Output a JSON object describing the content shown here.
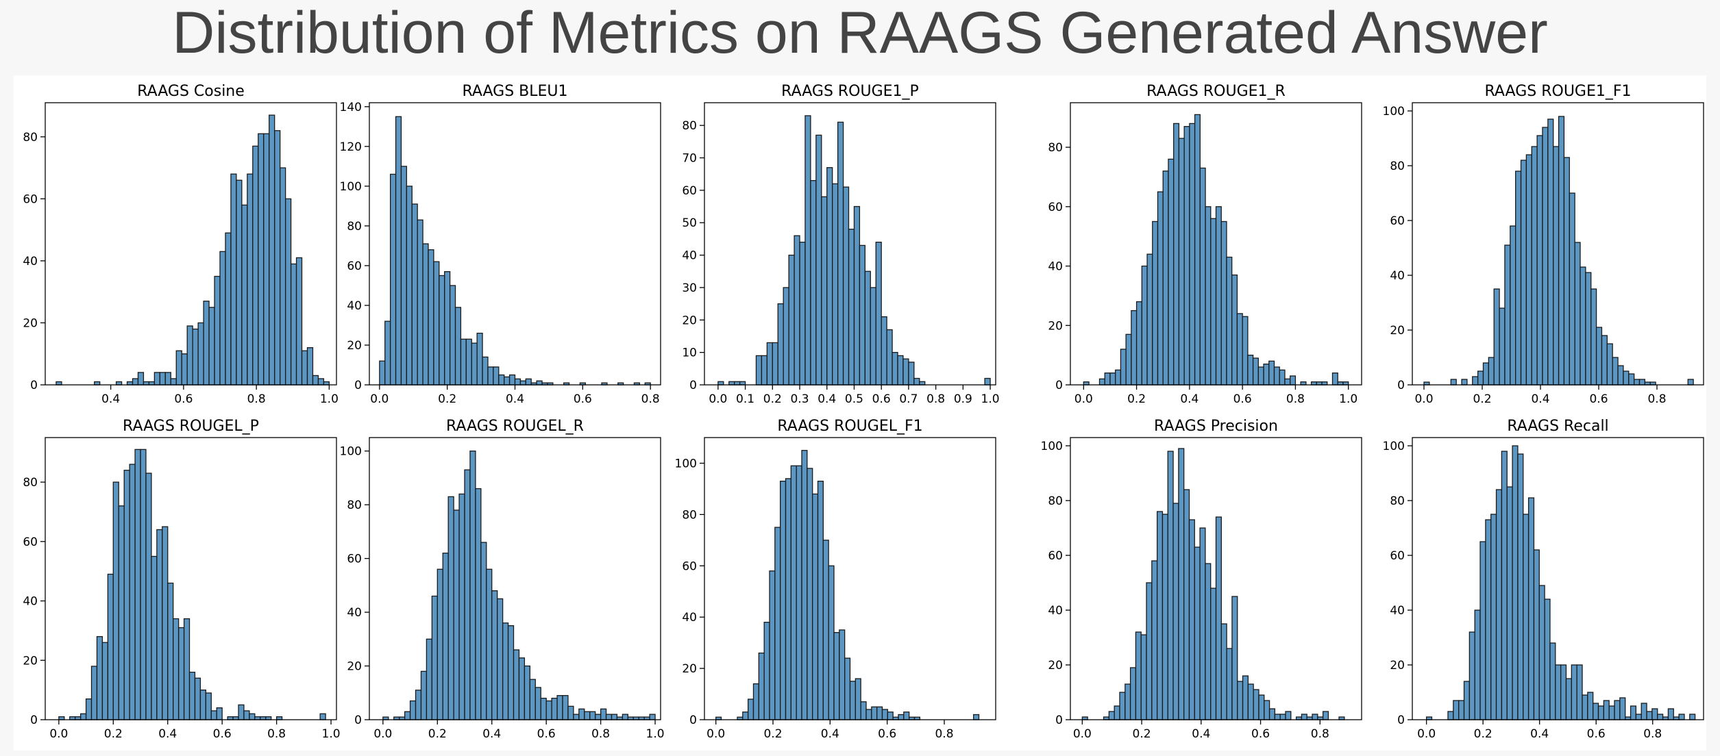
{
  "figure": {
    "title": "Distribution of Metrics on RAAGS Generated Answer",
    "bar_color": "#4a8bbd",
    "edge_color": "#1a1a1a"
  },
  "chart_data": [
    {
      "type": "bar",
      "title": "RAAGS Cosine",
      "xlim": [
        0.22,
        1.02
      ],
      "ylim": [
        0,
        91
      ],
      "x_ticks": [
        0.4,
        0.6,
        0.8,
        1.0
      ],
      "x_tick_labels": [
        "0.4",
        "0.6",
        "0.8",
        "1.0"
      ],
      "y_ticks": [
        0,
        20,
        40,
        60,
        80
      ],
      "bin_start": 0.25,
      "bin_width": 0.015,
      "values": [
        1,
        0,
        0,
        0,
        0,
        0,
        0,
        1,
        0,
        0,
        0,
        1,
        0,
        1,
        2,
        4,
        1,
        1,
        4,
        4,
        4,
        2,
        11,
        10,
        19,
        18,
        20,
        27,
        25,
        35,
        43,
        49,
        68,
        66,
        58,
        68,
        77,
        81,
        81,
        87,
        82,
        70,
        60,
        39,
        41,
        11,
        12,
        3,
        2,
        1
      ]
    },
    {
      "type": "bar",
      "title": "RAAGS BLEU1",
      "xlim": [
        -0.03,
        0.83
      ],
      "ylim": [
        0,
        142
      ],
      "x_ticks": [
        0.0,
        0.2,
        0.4,
        0.6,
        0.8
      ],
      "x_tick_labels": [
        "0.0",
        "0.2",
        "0.4",
        "0.6",
        "0.8"
      ],
      "y_ticks": [
        0,
        20,
        40,
        60,
        80,
        100,
        120,
        140
      ],
      "bin_start": 0.0,
      "bin_width": 0.016,
      "values": [
        12,
        32,
        106,
        135,
        110,
        100,
        91,
        83,
        71,
        68,
        62,
        55,
        57,
        50,
        39,
        23,
        23,
        21,
        26,
        14,
        9,
        9,
        5,
        4,
        5,
        3,
        2,
        3,
        1,
        2,
        1,
        1,
        0,
        0,
        1,
        0,
        0,
        1,
        0,
        0,
        0,
        1,
        0,
        0,
        1,
        0,
        0,
        1,
        0,
        1
      ]
    },
    {
      "type": "bar",
      "title": "RAAGS ROUGE1_P",
      "xlim": [
        -0.05,
        1.02
      ],
      "ylim": [
        0,
        87
      ],
      "x_ticks": [
        0.0,
        0.1,
        0.2,
        0.3,
        0.4,
        0.5,
        0.6,
        0.7,
        0.8,
        0.9,
        1.0
      ],
      "x_tick_labels": [
        "0.0",
        "0.1",
        "0.2",
        "0.3",
        "0.4",
        "0.5",
        "0.6",
        "0.7",
        "0.8",
        "0.9",
        "1.0"
      ],
      "y_ticks": [
        0,
        10,
        20,
        30,
        40,
        50,
        60,
        70,
        80
      ],
      "bin_start": 0.0,
      "bin_width": 0.02,
      "values": [
        1,
        0,
        1,
        1,
        1,
        0,
        0,
        9,
        9,
        13,
        13,
        25,
        30,
        40,
        46,
        44,
        83,
        63,
        77,
        58,
        67,
        62,
        81,
        61,
        48,
        55,
        43,
        35,
        30,
        44,
        21,
        17,
        10,
        9,
        8,
        7,
        2,
        1,
        0,
        0,
        0,
        0,
        0,
        0,
        0,
        0,
        0,
        0,
        0,
        2
      ]
    },
    {
      "type": "bar",
      "title": "RAAGS ROUGE1_R",
      "xlim": [
        -0.05,
        1.05
      ],
      "ylim": [
        0,
        95
      ],
      "x_ticks": [
        0.0,
        0.2,
        0.4,
        0.6,
        0.8,
        1.0
      ],
      "x_tick_labels": [
        "0.0",
        "0.2",
        "0.4",
        "0.6",
        "0.8",
        "1.0"
      ],
      "y_ticks": [
        0,
        20,
        40,
        60,
        80
      ],
      "bin_start": 0.0,
      "bin_width": 0.02,
      "values": [
        1,
        0,
        0,
        2,
        4,
        4,
        5,
        12,
        17,
        25,
        28,
        40,
        44,
        55,
        65,
        72,
        76,
        88,
        83,
        87,
        88,
        91,
        73,
        60,
        56,
        60,
        55,
        43,
        37,
        24,
        23,
        10,
        9,
        6,
        7,
        8,
        6,
        5,
        2,
        3,
        0,
        1,
        0,
        1,
        1,
        1,
        0,
        4,
        1,
        1
      ]
    },
    {
      "type": "bar",
      "title": "RAAGS ROUGE1_F1",
      "xlim": [
        -0.04,
        0.96
      ],
      "ylim": [
        0,
        103
      ],
      "x_ticks": [
        0.0,
        0.2,
        0.4,
        0.6,
        0.8
      ],
      "x_tick_labels": [
        "0.0",
        "0.2",
        "0.4",
        "0.6",
        "0.8"
      ],
      "y_ticks": [
        0,
        20,
        40,
        60,
        80,
        100
      ],
      "bin_start": 0.0,
      "bin_width": 0.0185,
      "values": [
        1,
        0,
        0,
        0,
        0,
        2,
        0,
        2,
        0,
        3,
        5,
        8,
        10,
        35,
        28,
        51,
        58,
        78,
        82,
        84,
        87,
        91,
        94,
        97,
        87,
        98,
        83,
        70,
        52,
        43,
        41,
        35,
        21,
        18,
        15,
        10,
        7,
        5,
        4,
        2,
        2,
        1,
        1,
        0,
        0,
        0,
        0,
        0,
        0,
        2
      ]
    },
    {
      "type": "bar",
      "title": "RAAGS ROUGEL_P",
      "xlim": [
        -0.05,
        1.02
      ],
      "ylim": [
        0,
        95
      ],
      "x_ticks": [
        0.0,
        0.2,
        0.4,
        0.6,
        0.8,
        1.0
      ],
      "x_tick_labels": [
        "0.0",
        "0.2",
        "0.4",
        "0.6",
        "0.8",
        "1.0"
      ],
      "y_ticks": [
        0,
        20,
        40,
        60,
        80
      ],
      "bin_start": 0.0,
      "bin_width": 0.02,
      "values": [
        1,
        0,
        1,
        1,
        2,
        7,
        18,
        28,
        26,
        49,
        80,
        72,
        84,
        86,
        91,
        91,
        83,
        55,
        64,
        65,
        46,
        34,
        31,
        34,
        16,
        14,
        10,
        9,
        3,
        4,
        0,
        1,
        1,
        5,
        3,
        2,
        1,
        1,
        1,
        0,
        1,
        0,
        0,
        0,
        0,
        0,
        0,
        0,
        2,
        0
      ]
    },
    {
      "type": "bar",
      "title": "RAAGS ROUGEL_R",
      "xlim": [
        -0.05,
        1.02
      ],
      "ylim": [
        0,
        105
      ],
      "x_ticks": [
        0.0,
        0.2,
        0.4,
        0.6,
        0.8,
        1.0
      ],
      "x_tick_labels": [
        "0.0",
        "0.2",
        "0.4",
        "0.6",
        "0.8",
        "1.0"
      ],
      "y_ticks": [
        0,
        20,
        40,
        60,
        80,
        100
      ],
      "bin_start": 0.0,
      "bin_width": 0.02,
      "values": [
        1,
        0,
        1,
        1,
        3,
        7,
        11,
        18,
        30,
        46,
        56,
        62,
        83,
        78,
        84,
        93,
        100,
        86,
        66,
        56,
        48,
        45,
        36,
        35,
        26,
        23,
        20,
        15,
        12,
        8,
        7,
        8,
        9,
        9,
        5,
        2,
        4,
        3,
        3,
        2,
        4,
        2,
        2,
        1,
        2,
        1,
        1,
        1,
        1,
        2
      ]
    },
    {
      "type": "bar",
      "title": "RAAGS ROUGEL_F1",
      "xlim": [
        -0.04,
        0.98
      ],
      "ylim": [
        0,
        110
      ],
      "x_ticks": [
        0.0,
        0.2,
        0.4,
        0.6,
        0.8
      ],
      "x_tick_labels": [
        "0.0",
        "0.2",
        "0.4",
        "0.6",
        "0.8"
      ],
      "y_ticks": [
        0,
        20,
        40,
        60,
        80,
        100
      ],
      "bin_start": 0.0,
      "bin_width": 0.0188,
      "values": [
        1,
        0,
        0,
        0,
        1,
        3,
        8,
        14,
        26,
        38,
        58,
        75,
        93,
        94,
        99,
        99,
        105,
        98,
        88,
        93,
        70,
        60,
        34,
        35,
        24,
        15,
        16,
        7,
        4,
        5,
        5,
        4,
        3,
        1,
        2,
        3,
        1,
        1,
        0,
        0,
        0,
        0,
        0,
        0,
        0,
        0,
        0,
        0,
        2,
        0
      ]
    },
    {
      "type": "bar",
      "title": "RAAGS Precision",
      "xlim": [
        -0.04,
        0.94
      ],
      "ylim": [
        0,
        103
      ],
      "x_ticks": [
        0.0,
        0.2,
        0.4,
        0.6,
        0.8
      ],
      "x_tick_labels": [
        "0.0",
        "0.2",
        "0.4",
        "0.6",
        "0.8"
      ],
      "y_ticks": [
        0,
        20,
        40,
        60,
        80,
        100
      ],
      "bin_start": 0.0,
      "bin_width": 0.018,
      "values": [
        1,
        0,
        0,
        0,
        1,
        3,
        5,
        10,
        13,
        19,
        32,
        31,
        50,
        58,
        76,
        75,
        98,
        79,
        99,
        84,
        73,
        63,
        70,
        57,
        48,
        74,
        35,
        26,
        45,
        14,
        16,
        13,
        11,
        9,
        7,
        4,
        2,
        2,
        3,
        0,
        1,
        2,
        1,
        2,
        1,
        3,
        0,
        0,
        1,
        0
      ]
    },
    {
      "type": "bar",
      "title": "RAAGS Recall",
      "xlim": [
        -0.05,
        0.98
      ],
      "ylim": [
        0,
        103
      ],
      "x_ticks": [
        0.0,
        0.2,
        0.4,
        0.6,
        0.8
      ],
      "x_tick_labels": [
        "0.0",
        "0.2",
        "0.4",
        "0.6",
        "0.8"
      ],
      "y_ticks": [
        0,
        20,
        40,
        60,
        80,
        100
      ],
      "bin_start": 0.0,
      "bin_width": 0.019,
      "values": [
        1,
        0,
        0,
        0,
        3,
        7,
        7,
        14,
        32,
        40,
        65,
        73,
        75,
        84,
        98,
        85,
        100,
        97,
        75,
        81,
        62,
        49,
        44,
        28,
        20,
        20,
        15,
        20,
        20,
        9,
        10,
        6,
        5,
        7,
        5,
        7,
        8,
        1,
        5,
        2,
        6,
        3,
        4,
        2,
        1,
        4,
        1,
        2,
        0,
        2
      ]
    }
  ]
}
